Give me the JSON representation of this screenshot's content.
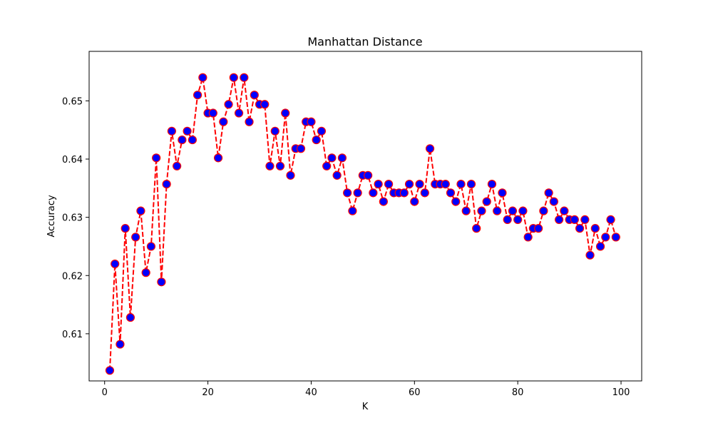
{
  "chart_data": {
    "type": "line",
    "title": "Manhattan Distance",
    "xlabel": "K",
    "ylabel": "Accuracy",
    "xlim": [
      -3,
      104
    ],
    "ylim": [
      0.6019,
      0.6585
    ],
    "xticks": [
      0,
      20,
      40,
      60,
      80,
      100
    ],
    "xtick_labels": [
      "0",
      "20",
      "40",
      "60",
      "80",
      "100"
    ],
    "yticks": [
      0.61,
      0.62,
      0.63,
      0.64,
      0.65
    ],
    "ytick_labels": [
      "0.61",
      "0.62",
      "0.63",
      "0.64",
      "0.65"
    ],
    "grid": false,
    "legend": null,
    "series": [
      {
        "line_color": "#ff0000",
        "line_style": "dashed",
        "marker": "circle",
        "marker_face_color": "#0000ff",
        "marker_edge_color": "#ff0000",
        "x": [
          1,
          2,
          3,
          4,
          5,
          6,
          7,
          8,
          9,
          10,
          11,
          12,
          13,
          14,
          15,
          16,
          17,
          18,
          19,
          20,
          21,
          22,
          23,
          24,
          25,
          26,
          27,
          28,
          29,
          30,
          31,
          32,
          33,
          34,
          35,
          36,
          37,
          38,
          39,
          40,
          41,
          42,
          43,
          44,
          45,
          46,
          47,
          48,
          49,
          50,
          51,
          52,
          53,
          54,
          55,
          56,
          57,
          58,
          59,
          60,
          61,
          62,
          63,
          64,
          65,
          66,
          67,
          68,
          69,
          70,
          71,
          72,
          73,
          74,
          75,
          76,
          77,
          78,
          79,
          80,
          81,
          82,
          83,
          84,
          85,
          86,
          87,
          88,
          89,
          90,
          91,
          92,
          93,
          94,
          95,
          96,
          97,
          98,
          99
        ],
        "y": [
          0.6037,
          0.622,
          0.6082,
          0.6281,
          0.6128,
          0.6266,
          0.6311,
          0.6205,
          0.625,
          0.6402,
          0.6189,
          0.6357,
          0.6448,
          0.6388,
          0.6433,
          0.6448,
          0.6433,
          0.651,
          0.654,
          0.6479,
          0.6479,
          0.6402,
          0.6464,
          0.6494,
          0.654,
          0.6479,
          0.654,
          0.6464,
          0.651,
          0.6494,
          0.6494,
          0.6388,
          0.6448,
          0.6388,
          0.6479,
          0.6372,
          0.6418,
          0.6418,
          0.6464,
          0.6464,
          0.6433,
          0.6448,
          0.6388,
          0.6402,
          0.6372,
          0.6402,
          0.6342,
          0.6311,
          0.6342,
          0.6372,
          0.6372,
          0.6342,
          0.6357,
          0.6327,
          0.6357,
          0.6342,
          0.6342,
          0.6342,
          0.6357,
          0.6327,
          0.6357,
          0.6342,
          0.6418,
          0.6357,
          0.6357,
          0.6357,
          0.6342,
          0.6327,
          0.6357,
          0.6311,
          0.6357,
          0.6281,
          0.6311,
          0.6327,
          0.6357,
          0.6311,
          0.6342,
          0.6296,
          0.6311,
          0.6296,
          0.6311,
          0.6266,
          0.6281,
          0.6281,
          0.6311,
          0.6342,
          0.6327,
          0.6296,
          0.6311,
          0.6296,
          0.6296,
          0.6281,
          0.6296,
          0.6235,
          0.6281,
          0.625,
          0.6266,
          0.6296,
          0.6266
        ]
      }
    ]
  }
}
